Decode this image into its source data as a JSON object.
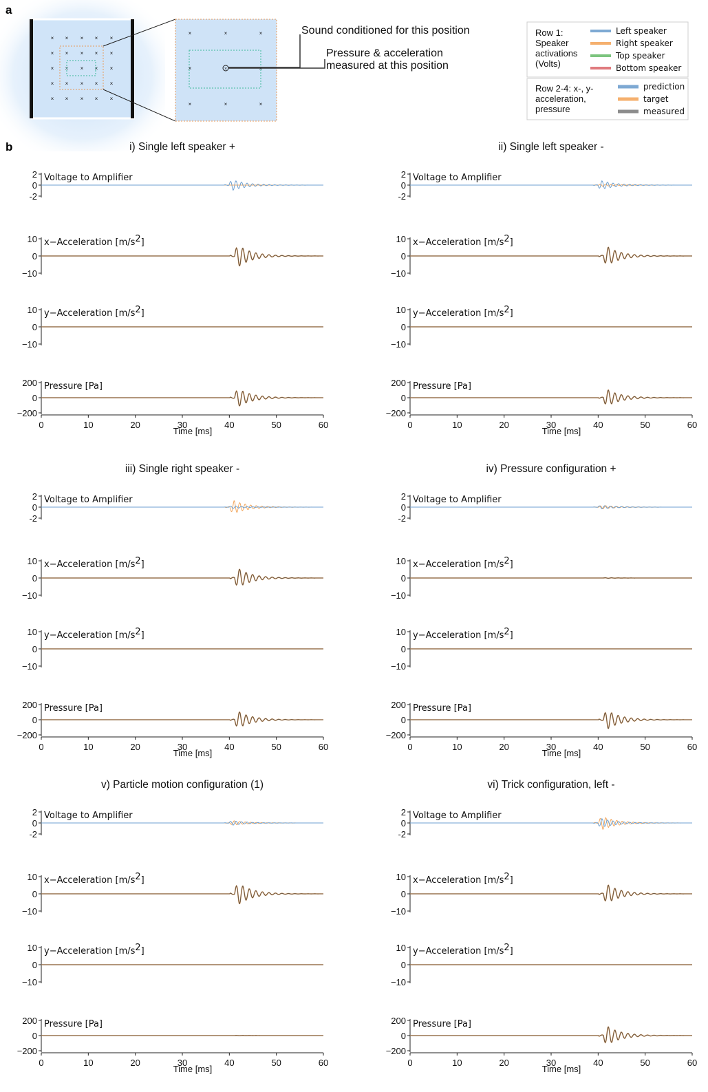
{
  "panel_labels": {
    "a": "a",
    "b": "b"
  },
  "annotations": {
    "sound_conditioned": "Sound conditioned for this position",
    "measured_line1": "Pressure & acceleration",
    "measured_line2": "measured at this position"
  },
  "legend": {
    "row1_title": [
      "Row 1:",
      "Speaker",
      "activations",
      "(Volts)"
    ],
    "row1_items": [
      {
        "label": "Left speaker",
        "color": "#7ea9d3"
      },
      {
        "label": "Right speaker",
        "color": "#f5b06e"
      },
      {
        "label": "Top speaker",
        "color": "#7cc47e"
      },
      {
        "label": "Bottom speaker",
        "color": "#e07a7e"
      }
    ],
    "row24_title": [
      "Row 2-4: x-, y-",
      "acceleration,",
      "pressure"
    ],
    "row24_items": [
      {
        "label": "prediction",
        "color": "#7ea9d3"
      },
      {
        "label": "target",
        "color": "#f5b06e"
      },
      {
        "label": "measured",
        "color": "#8c8c8c"
      }
    ]
  },
  "colors": {
    "left_speaker": "#6c9fd0",
    "right_speaker": "#f2a75e",
    "trace": "#6b5a48",
    "axis": "#222222",
    "room_fill": "#cfe3f7",
    "orange_box": "#e89a5a",
    "green_box": "#3cb89a"
  },
  "chart_data": {
    "type": "line",
    "xlabel": "Time [ms]",
    "x_ticks": [
      0,
      10,
      20,
      30,
      40,
      50,
      60
    ],
    "xlim": [
      0,
      60
    ],
    "rows": [
      {
        "label": "Voltage to Amplifier",
        "unit_sup": "",
        "ylim": [
          -2.5,
          2.5
        ],
        "ticks": [
          2,
          0,
          -2
        ],
        "tick_labels": [
          "2",
          "0",
          "-2"
        ]
      },
      {
        "label": "x−Acceleration [m/s",
        "unit_sup": "2",
        "ylim": [
          -10,
          10
        ],
        "ticks": [
          10,
          0,
          -10
        ],
        "tick_labels": [
          "10",
          "0",
          "−10"
        ]
      },
      {
        "label": "y−Acceleration [m/s",
        "unit_sup": "2",
        "ylim": [
          -10,
          10
        ],
        "ticks": [
          10,
          0,
          -10
        ],
        "tick_labels": [
          "10",
          "0",
          "−10"
        ]
      },
      {
        "label": "Pressure [Pa]",
        "unit_sup": "",
        "ylim": [
          -200,
          200
        ],
        "ticks": [
          200,
          0,
          -200
        ],
        "tick_labels": [
          "200",
          "0",
          "−200"
        ]
      }
    ],
    "subplots": [
      {
        "title": "i) Single left speaker +",
        "burst_start_ms": 40,
        "voltage": {
          "left": 1.2,
          "right": 0
        },
        "x_acc": 8,
        "y_acc": 0,
        "pressure": 150
      },
      {
        "title": "ii) Single left speaker -",
        "burst_start_ms": 40,
        "voltage": {
          "left": -1.0,
          "right": 0.3
        },
        "x_acc": -7,
        "y_acc": 0,
        "pressure": -140
      },
      {
        "title": "iii) Single right speaker -",
        "burst_start_ms": 40,
        "voltage": {
          "left": 0.3,
          "right": -1.5
        },
        "x_acc": -7,
        "y_acc": 0,
        "pressure": -140
      },
      {
        "title": "iv) Pressure configuration +",
        "burst_start_ms": 40,
        "voltage": {
          "left": 0.4,
          "right": 0.4
        },
        "x_acc": 0.2,
        "y_acc": 0,
        "pressure": 160
      },
      {
        "title": "v) Particle motion configuration (1)",
        "burst_start_ms": 40,
        "voltage": {
          "left": 0.5,
          "right": -0.5
        },
        "x_acc": 8,
        "y_acc": 0,
        "pressure": 3
      },
      {
        "title": "vi) Trick configuration, left -",
        "burst_start_ms": 40,
        "voltage": {
          "left": -1.0,
          "right": 1.5
        },
        "x_acc": -7,
        "y_acc": 0,
        "pressure": -160
      }
    ]
  }
}
